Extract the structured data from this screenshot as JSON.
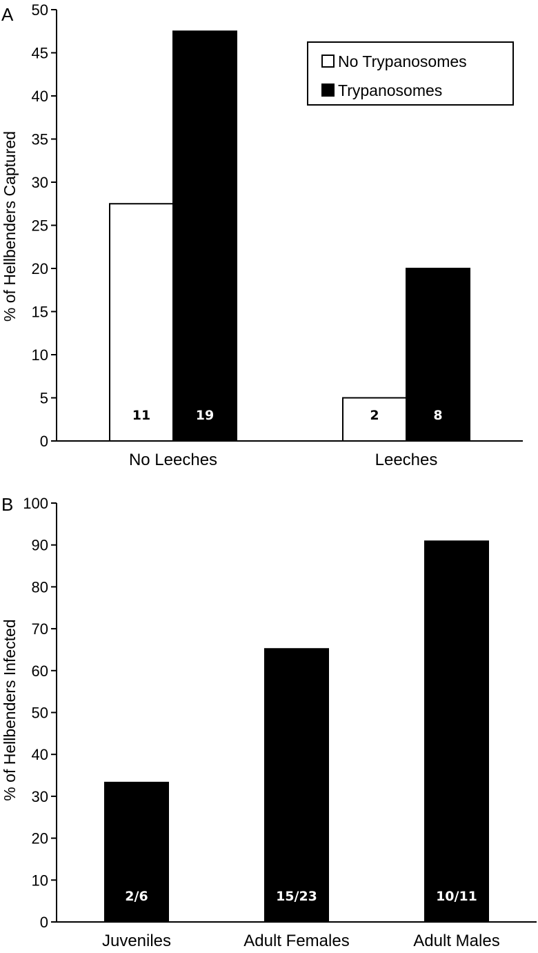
{
  "chart_data": [
    {
      "panel": "A",
      "type": "bar",
      "categories": [
        "No Leeches",
        "Leeches"
      ],
      "series": [
        {
          "name": "No Trypanosomes",
          "values": [
            27.5,
            5
          ],
          "labels": [
            "11",
            "2"
          ],
          "color": "#ffffff"
        },
        {
          "name": "Trypanosomes",
          "values": [
            47.5,
            20
          ],
          "labels": [
            "19",
            "8"
          ],
          "color": "#000000"
        }
      ],
      "ylabel": "% of Hellbenders Captured",
      "ylim": [
        0,
        50
      ],
      "yticks": [
        0,
        5,
        10,
        15,
        20,
        25,
        30,
        35,
        40,
        45,
        50
      ],
      "legend": {
        "position": "top-right",
        "entries": [
          "No Trypanosomes",
          "Trypanosomes"
        ]
      },
      "grid": false
    },
    {
      "panel": "B",
      "type": "bar",
      "categories": [
        "Juveniles",
        "Adult Females",
        "Adult Males"
      ],
      "values": [
        33.3,
        65.2,
        90.9
      ],
      "labels": [
        "2/6",
        "15/23",
        "10/11"
      ],
      "color": "#000000",
      "ylabel": "% of Hellbenders Infected",
      "ylim": [
        0,
        100
      ],
      "yticks": [
        0,
        10,
        20,
        30,
        40,
        50,
        60,
        70,
        80,
        90,
        100
      ],
      "grid": false
    }
  ]
}
